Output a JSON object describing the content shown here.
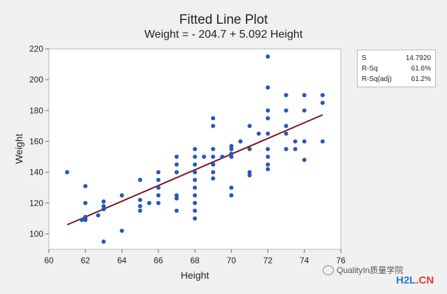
{
  "title": "Fitted Line Plot",
  "subtitle": "Weight = - 204.7 + 5.092 Height",
  "stats": [
    {
      "label": "S",
      "value": "14.7920"
    },
    {
      "label": "R-Sq",
      "value": "61.6%"
    },
    {
      "label": "R-Sq(adj)",
      "value": "61.2%"
    }
  ],
  "watermark": {
    "text": "QualityIn质量学院",
    "brand_a": "H2L",
    "brand_b": ".CN"
  },
  "colors": {
    "points": "#2457b8",
    "fit_line": "#7a1020",
    "plot_bg": "#ffffff",
    "page_bg": "#f0f0f0"
  },
  "chart_data": {
    "type": "scatter",
    "title": "Fitted Line Plot",
    "subtitle": "Weight = - 204.7 + 5.092 Height",
    "xlabel": "Height",
    "ylabel": "Weight",
    "xlim": [
      60,
      76
    ],
    "ylim": [
      90,
      220
    ],
    "xticks": [
      60,
      62,
      64,
      66,
      68,
      70,
      72,
      74,
      76
    ],
    "yticks": [
      100,
      120,
      140,
      160,
      180,
      200,
      220
    ],
    "grid": false,
    "fit_line": {
      "intercept": -204.7,
      "slope": 5.092,
      "x_range": [
        61,
        75
      ]
    },
    "points": [
      [
        61,
        140
      ],
      [
        61.8,
        109
      ],
      [
        62,
        109
      ],
      [
        62,
        131
      ],
      [
        62,
        120
      ],
      [
        62,
        111
      ],
      [
        62,
        110
      ],
      [
        62.7,
        112
      ],
      [
        63,
        121
      ],
      [
        63,
        118
      ],
      [
        63,
        116
      ],
      [
        63,
        95
      ],
      [
        64,
        125
      ],
      [
        64,
        102
      ],
      [
        65,
        135
      ],
      [
        65,
        122
      ],
      [
        65,
        118
      ],
      [
        65,
        115
      ],
      [
        65.5,
        120
      ],
      [
        66,
        140
      ],
      [
        66,
        135
      ],
      [
        66,
        130
      ],
      [
        66,
        125
      ],
      [
        66,
        120
      ],
      [
        67,
        150
      ],
      [
        67,
        145
      ],
      [
        67,
        140
      ],
      [
        67,
        125
      ],
      [
        67,
        123
      ],
      [
        67,
        115
      ],
      [
        68,
        155
      ],
      [
        68,
        150
      ],
      [
        68,
        145
      ],
      [
        68,
        140
      ],
      [
        68,
        135
      ],
      [
        68,
        130
      ],
      [
        68,
        125
      ],
      [
        68,
        120
      ],
      [
        68,
        115
      ],
      [
        68,
        110
      ],
      [
        68.5,
        150
      ],
      [
        69,
        175
      ],
      [
        69,
        170
      ],
      [
        69,
        155
      ],
      [
        69,
        150
      ],
      [
        69,
        145
      ],
      [
        69,
        140
      ],
      [
        69,
        136
      ],
      [
        69.5,
        150
      ],
      [
        70,
        157
      ],
      [
        70,
        155
      ],
      [
        70,
        152
      ],
      [
        70,
        150
      ],
      [
        70,
        130
      ],
      [
        70,
        125
      ],
      [
        70.5,
        160
      ],
      [
        71,
        170
      ],
      [
        71,
        155
      ],
      [
        71,
        140
      ],
      [
        71,
        138
      ],
      [
        71.5,
        165
      ],
      [
        72,
        215
      ],
      [
        72,
        195
      ],
      [
        72,
        180
      ],
      [
        72,
        175
      ],
      [
        72,
        165
      ],
      [
        72,
        155
      ],
      [
        72,
        150
      ],
      [
        72,
        145
      ],
      [
        72,
        142
      ],
      [
        73,
        190
      ],
      [
        73,
        180
      ],
      [
        73,
        170
      ],
      [
        73,
        165
      ],
      [
        73,
        155
      ],
      [
        73.5,
        160
      ],
      [
        73.5,
        155
      ],
      [
        74,
        190
      ],
      [
        74,
        180
      ],
      [
        74,
        160
      ],
      [
        74,
        148
      ],
      [
        75,
        190
      ],
      [
        75,
        185
      ],
      [
        75,
        160
      ]
    ]
  }
}
